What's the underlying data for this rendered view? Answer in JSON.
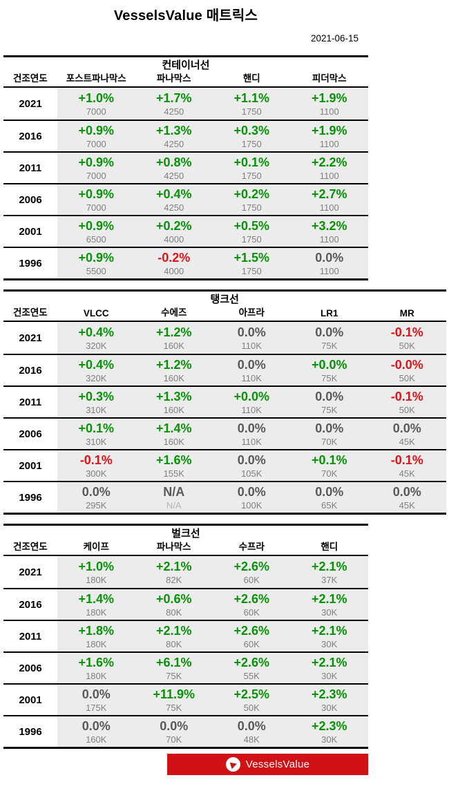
{
  "header": {
    "title": "VesselsValue 매트릭스",
    "date": "2021-06-15"
  },
  "chart_data": [
    {
      "type": "table",
      "title": "컨테이너선",
      "year_col_label": "건조연도",
      "columns": [
        "포스트파나막스",
        "파나막스",
        "핸디",
        "피더막스"
      ],
      "rows": [
        {
          "year": "2021",
          "cells": [
            {
              "pct": "+1.0%",
              "val": "7000",
              "c": "g"
            },
            {
              "pct": "+1.7%",
              "val": "4250",
              "c": "g"
            },
            {
              "pct": "+1.1%",
              "val": "1750",
              "c": "g"
            },
            {
              "pct": "+1.9%",
              "val": "1100",
              "c": "g"
            }
          ]
        },
        {
          "year": "2016",
          "cells": [
            {
              "pct": "+0.9%",
              "val": "7000",
              "c": "g"
            },
            {
              "pct": "+1.3%",
              "val": "4250",
              "c": "g"
            },
            {
              "pct": "+0.3%",
              "val": "1750",
              "c": "g"
            },
            {
              "pct": "+1.9%",
              "val": "1100",
              "c": "g"
            }
          ]
        },
        {
          "year": "2011",
          "cells": [
            {
              "pct": "+0.9%",
              "val": "7000",
              "c": "g"
            },
            {
              "pct": "+0.8%",
              "val": "4250",
              "c": "g"
            },
            {
              "pct": "+0.1%",
              "val": "1750",
              "c": "g"
            },
            {
              "pct": "+2.2%",
              "val": "1100",
              "c": "g"
            }
          ]
        },
        {
          "year": "2006",
          "cells": [
            {
              "pct": "+0.9%",
              "val": "7000",
              "c": "g"
            },
            {
              "pct": "+0.4%",
              "val": "4250",
              "c": "g"
            },
            {
              "pct": "+0.2%",
              "val": "1750",
              "c": "g"
            },
            {
              "pct": "+2.7%",
              "val": "1100",
              "c": "g"
            }
          ]
        },
        {
          "year": "2001",
          "cells": [
            {
              "pct": "+0.9%",
              "val": "6500",
              "c": "g"
            },
            {
              "pct": "+0.2%",
              "val": "4000",
              "c": "g"
            },
            {
              "pct": "+0.5%",
              "val": "1750",
              "c": "g"
            },
            {
              "pct": "+3.2%",
              "val": "1100",
              "c": "g"
            }
          ]
        },
        {
          "year": "1996",
          "cells": [
            {
              "pct": "+0.9%",
              "val": "5500",
              "c": "g"
            },
            {
              "pct": "-0.2%",
              "val": "4000",
              "c": "r"
            },
            {
              "pct": "+1.5%",
              "val": "1750",
              "c": "g"
            },
            {
              "pct": "0.0%",
              "val": "1100",
              "c": "n"
            }
          ]
        }
      ]
    },
    {
      "type": "table",
      "title": "탱크선",
      "year_col_label": "건조연도",
      "columns": [
        "VLCC",
        "수에즈",
        "아프라",
        "LR1",
        "MR"
      ],
      "rows": [
        {
          "year": "2021",
          "cells": [
            {
              "pct": "+0.4%",
              "val": "320K",
              "c": "g"
            },
            {
              "pct": "+1.2%",
              "val": "160K",
              "c": "g"
            },
            {
              "pct": "0.0%",
              "val": "110K",
              "c": "n"
            },
            {
              "pct": "0.0%",
              "val": "75K",
              "c": "n"
            },
            {
              "pct": "-0.1%",
              "val": "50K",
              "c": "r"
            }
          ]
        },
        {
          "year": "2016",
          "cells": [
            {
              "pct": "+0.4%",
              "val": "320K",
              "c": "g"
            },
            {
              "pct": "+1.2%",
              "val": "160K",
              "c": "g"
            },
            {
              "pct": "0.0%",
              "val": "110K",
              "c": "n"
            },
            {
              "pct": "+0.0%",
              "val": "75K",
              "c": "g"
            },
            {
              "pct": "-0.0%",
              "val": "50K",
              "c": "r"
            }
          ]
        },
        {
          "year": "2011",
          "cells": [
            {
              "pct": "+0.3%",
              "val": "310K",
              "c": "g"
            },
            {
              "pct": "+1.3%",
              "val": "160K",
              "c": "g"
            },
            {
              "pct": "+0.0%",
              "val": "110K",
              "c": "g"
            },
            {
              "pct": "0.0%",
              "val": "75K",
              "c": "n"
            },
            {
              "pct": "-0.1%",
              "val": "50K",
              "c": "r"
            }
          ]
        },
        {
          "year": "2006",
          "cells": [
            {
              "pct": "+0.1%",
              "val": "310K",
              "c": "g"
            },
            {
              "pct": "+1.4%",
              "val": "160K",
              "c": "g"
            },
            {
              "pct": "0.0%",
              "val": "110K",
              "c": "n"
            },
            {
              "pct": "0.0%",
              "val": "70K",
              "c": "n"
            },
            {
              "pct": "0.0%",
              "val": "45K",
              "c": "n"
            }
          ]
        },
        {
          "year": "2001",
          "cells": [
            {
              "pct": "-0.1%",
              "val": "300K",
              "c": "r"
            },
            {
              "pct": "+1.6%",
              "val": "155K",
              "c": "g"
            },
            {
              "pct": "0.0%",
              "val": "105K",
              "c": "n"
            },
            {
              "pct": "+0.1%",
              "val": "70K",
              "c": "g"
            },
            {
              "pct": "-0.1%",
              "val": "45K",
              "c": "r"
            }
          ]
        },
        {
          "year": "1996",
          "cells": [
            {
              "pct": "0.0%",
              "val": "295K",
              "c": "n"
            },
            {
              "pct": "N/A",
              "val": "N/A",
              "c": "n"
            },
            {
              "pct": "0.0%",
              "val": "100K",
              "c": "n"
            },
            {
              "pct": "0.0%",
              "val": "65K",
              "c": "n"
            },
            {
              "pct": "0.0%",
              "val": "45K",
              "c": "n"
            }
          ]
        }
      ]
    },
    {
      "type": "table",
      "title": "벌크선",
      "year_col_label": "건조연도",
      "columns": [
        "케이프",
        "파나막스",
        "수프라",
        "핸디"
      ],
      "rows": [
        {
          "year": "2021",
          "cells": [
            {
              "pct": "+1.0%",
              "val": "180K",
              "c": "g"
            },
            {
              "pct": "+2.1%",
              "val": "82K",
              "c": "g"
            },
            {
              "pct": "+2.6%",
              "val": "60K",
              "c": "g"
            },
            {
              "pct": "+2.1%",
              "val": "37K",
              "c": "g"
            }
          ]
        },
        {
          "year": "2016",
          "cells": [
            {
              "pct": "+1.4%",
              "val": "180K",
              "c": "g"
            },
            {
              "pct": "+0.6%",
              "val": "80K",
              "c": "g"
            },
            {
              "pct": "+2.6%",
              "val": "60K",
              "c": "g"
            },
            {
              "pct": "+2.1%",
              "val": "30K",
              "c": "g"
            }
          ]
        },
        {
          "year": "2011",
          "cells": [
            {
              "pct": "+1.8%",
              "val": "180K",
              "c": "g"
            },
            {
              "pct": "+2.1%",
              "val": "80K",
              "c": "g"
            },
            {
              "pct": "+2.6%",
              "val": "60K",
              "c": "g"
            },
            {
              "pct": "+2.1%",
              "val": "30K",
              "c": "g"
            }
          ]
        },
        {
          "year": "2006",
          "cells": [
            {
              "pct": "+1.6%",
              "val": "180K",
              "c": "g"
            },
            {
              "pct": "+6.1%",
              "val": "75K",
              "c": "g"
            },
            {
              "pct": "+2.6%",
              "val": "55K",
              "c": "g"
            },
            {
              "pct": "+2.1%",
              "val": "30K",
              "c": "g"
            }
          ]
        },
        {
          "year": "2001",
          "cells": [
            {
              "pct": "0.0%",
              "val": "175K",
              "c": "n"
            },
            {
              "pct": "+11.9%",
              "val": "75K",
              "c": "g"
            },
            {
              "pct": "+2.5%",
              "val": "50K",
              "c": "g"
            },
            {
              "pct": "+2.3%",
              "val": "30K",
              "c": "g"
            }
          ]
        },
        {
          "year": "1996",
          "cells": [
            {
              "pct": "0.0%",
              "val": "160K",
              "c": "n"
            },
            {
              "pct": "0.0%",
              "val": "70K",
              "c": "n"
            },
            {
              "pct": "0.0%",
              "val": "48K",
              "c": "n"
            },
            {
              "pct": "+2.3%",
              "val": "30K",
              "c": "g"
            }
          ]
        }
      ]
    }
  ],
  "footer": {
    "logo_text": "VesselsValue"
  },
  "colors": {
    "green": "#069306",
    "red": "#e41118",
    "neutral": "#595959",
    "value_gray": "#7f7f7f",
    "muted": "#b4b4b4",
    "cell_bg": "#ececec",
    "banner": "#d01217"
  }
}
